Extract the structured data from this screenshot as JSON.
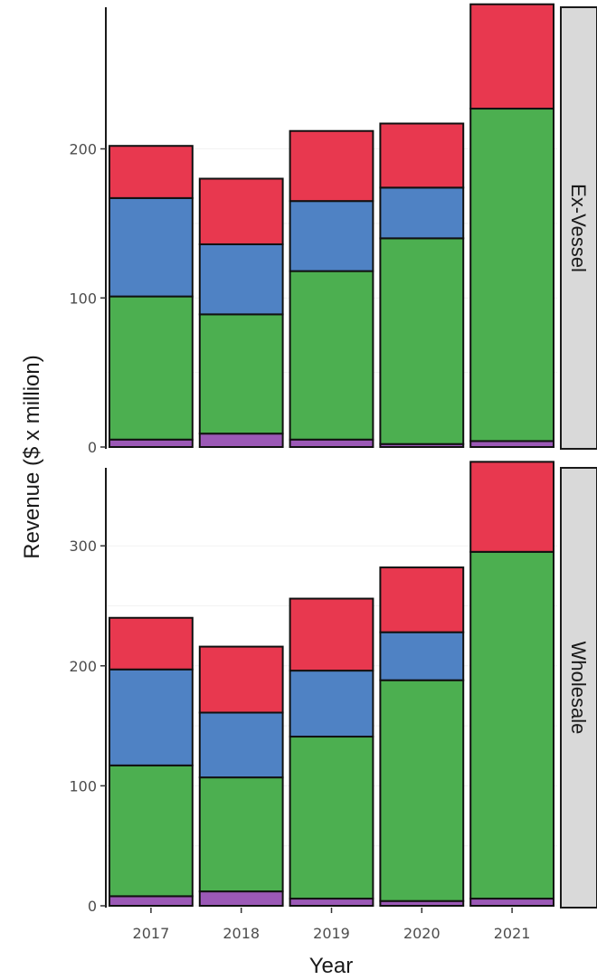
{
  "chart_data": {
    "type": "bar",
    "stacked": true,
    "xlabel": "Year",
    "ylabel": "Revenue ($ x million)",
    "categories": [
      "2017",
      "2018",
      "2019",
      "2020",
      "2021"
    ],
    "series_colors": [
      "#9b59b6",
      "#4caf50",
      "#4f82c4",
      "#e8384f"
    ],
    "legend": "none",
    "grid": true,
    "panels": [
      {
        "strip_label": "Ex-Vessel",
        "ylim": [
          0,
          295
        ],
        "yticks": [
          0,
          100,
          200
        ],
        "series": [
          {
            "values": [
              5,
              9,
              5,
              2,
              4
            ]
          },
          {
            "values": [
              96,
              80,
              113,
              138,
              223
            ]
          },
          {
            "values": [
              66,
              47,
              47,
              34,
              0
            ]
          },
          {
            "values": [
              35,
              44,
              47,
              43,
              70
            ]
          }
        ]
      },
      {
        "strip_label": "Wholesale",
        "ylim": [
          0,
          365
        ],
        "yticks": [
          0,
          100,
          200,
          300
        ],
        "series": [
          {
            "values": [
              8,
              12,
              6,
              4,
              6
            ]
          },
          {
            "values": [
              109,
              95,
              135,
              184,
              289
            ]
          },
          {
            "values": [
              80,
              54,
              55,
              40,
              0
            ]
          },
          {
            "values": [
              43,
              55,
              60,
              54,
              75
            ]
          }
        ]
      }
    ]
  }
}
